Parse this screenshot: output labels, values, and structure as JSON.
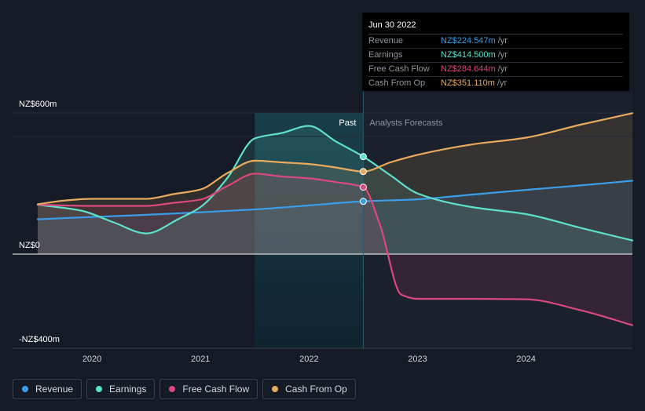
{
  "tooltip": {
    "date": "Jun 30 2022",
    "rows": [
      {
        "label": "Revenue",
        "value": "NZ$224.547m",
        "unit": "/yr",
        "color": "#3a9ee8"
      },
      {
        "label": "Earnings",
        "value": "NZ$414.500m",
        "unit": "/yr",
        "color": "#5ee0cc"
      },
      {
        "label": "Free Cash Flow",
        "value": "NZ$284.644m",
        "unit": "/yr",
        "color": "#d9487e"
      },
      {
        "label": "Cash From Op",
        "value": "NZ$351.110m",
        "unit": "/yr",
        "color": "#e8ab5e"
      }
    ]
  },
  "legend": [
    {
      "label": "Revenue",
      "color": "#3a9ee8"
    },
    {
      "label": "Earnings",
      "color": "#5ee0cc"
    },
    {
      "label": "Free Cash Flow",
      "color": "#d9487e"
    },
    {
      "label": "Cash From Op",
      "color": "#e8ab5e"
    }
  ],
  "chart_data": {
    "type": "line",
    "ylabels": [
      "NZ$600m",
      "NZ$0",
      "-NZ$400m"
    ],
    "ylim": [
      -400,
      600
    ],
    "xlim": [
      2019.5,
      2024.98
    ],
    "xticks": [
      {
        "value": 2020,
        "label": "2020"
      },
      {
        "value": 2021,
        "label": "2021"
      },
      {
        "value": 2022,
        "label": "2022"
      },
      {
        "value": 2023,
        "label": "2023"
      },
      {
        "value": 2024,
        "label": "2024"
      }
    ],
    "past_label": "Past",
    "forecast_label": "Analysts Forecasts",
    "highlight_range": [
      2021.5,
      2022.5
    ],
    "divider_x": 2022.5,
    "series": [
      {
        "name": "Revenue",
        "color": "#3a9ee8",
        "x": [
          2019.5,
          2020.0,
          2020.5,
          2021.0,
          2021.5,
          2022.0,
          2022.5,
          2023.0,
          2023.5,
          2024.0,
          2024.5,
          2024.98
        ],
        "y": [
          148,
          158,
          167,
          178,
          190,
          207,
          224.5,
          233,
          253,
          273,
          292,
          312
        ]
      },
      {
        "name": "Earnings",
        "color": "#5ee0cc",
        "x": [
          2019.5,
          2019.9,
          2020.2,
          2020.5,
          2020.8,
          2021.0,
          2021.25,
          2021.5,
          2021.75,
          2022.0,
          2022.25,
          2022.5,
          2022.75,
          2023.0,
          2023.5,
          2024.0,
          2024.5,
          2024.98
        ],
        "y": [
          210,
          185,
          135,
          88,
          150,
          200,
          325,
          492,
          515,
          545,
          478,
          414.5,
          335,
          258,
          200,
          170,
          112,
          58
        ]
      },
      {
        "name": "Free Cash Flow",
        "color": "#d9487e",
        "x": [
          2019.5,
          2020.0,
          2020.5,
          2020.75,
          2021.0,
          2021.25,
          2021.5,
          2021.75,
          2022.0,
          2022.25,
          2022.5,
          2022.65,
          2022.85,
          2023.0,
          2023.5,
          2024.0,
          2024.5,
          2024.98
        ],
        "y": [
          210,
          205,
          205,
          218,
          232,
          290,
          342,
          330,
          322,
          306,
          284.6,
          130,
          -172,
          -190,
          -190,
          -192,
          -238,
          -302
        ]
      },
      {
        "name": "Cash From Op",
        "color": "#e8ab5e",
        "x": [
          2019.5,
          2019.75,
          2020.0,
          2020.5,
          2020.75,
          2021.0,
          2021.25,
          2021.5,
          2021.75,
          2022.0,
          2022.25,
          2022.5,
          2022.75,
          2023.0,
          2023.5,
          2024.0,
          2024.5,
          2024.98
        ],
        "y": [
          212,
          228,
          235,
          235,
          255,
          275,
          345,
          397,
          390,
          383,
          368,
          351,
          390,
          422,
          466,
          495,
          550,
          599
        ]
      }
    ]
  }
}
